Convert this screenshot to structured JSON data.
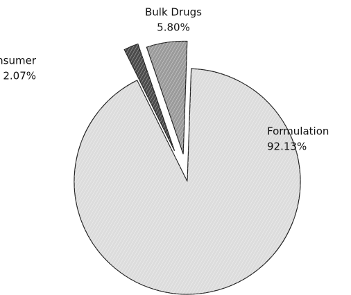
{
  "chart_data": {
    "type": "pie",
    "categories": [
      "Formulation",
      "Consumer",
      "Bulk Drugs"
    ],
    "values": [
      92.13,
      2.07,
      5.8
    ],
    "value_labels": [
      "92.13%",
      "2.07%",
      "5.80%"
    ],
    "colors": [
      "#dcdcdc",
      "#4a4a4a",
      "#9a9a9a"
    ]
  }
}
